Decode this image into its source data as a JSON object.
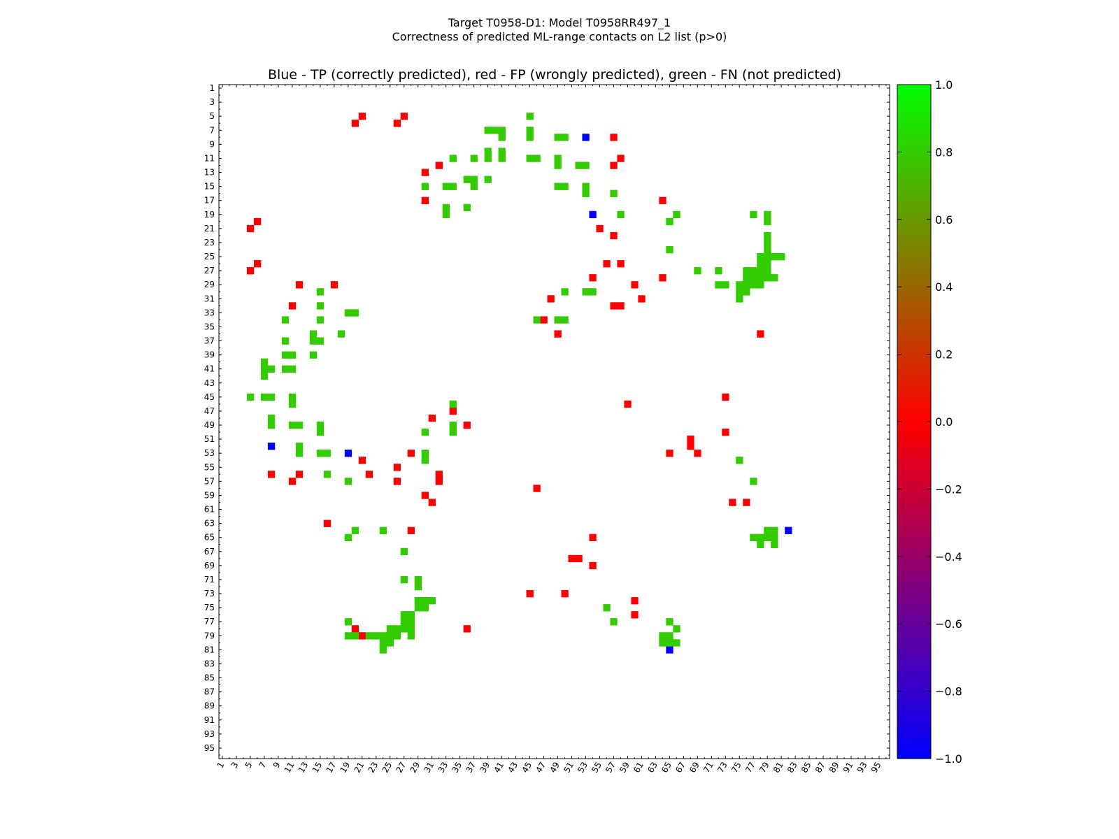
{
  "figure": {
    "suptitle_line1": "Target T0958-D1: Model T0958RR497_1",
    "suptitle_line2": "Correctness of predicted ML-range contacts on L2 list (p>0)"
  },
  "chart_data": {
    "type": "heatmap",
    "title": "Blue - TP (correctly predicted), red - FP (wrongly predicted), green - FN (not predicted)",
    "xlabel": "",
    "ylabel": "",
    "n": 96,
    "x_range": [
      1,
      96
    ],
    "y_range": [
      1,
      96
    ],
    "x_tick_labels": [
      "1",
      "3",
      "5",
      "7",
      "9",
      "11",
      "13",
      "15",
      "17",
      "19",
      "21",
      "23",
      "25",
      "27",
      "29",
      "31",
      "33",
      "35",
      "37",
      "39",
      "41",
      "43",
      "45",
      "47",
      "49",
      "51",
      "53",
      "55",
      "57",
      "59",
      "61",
      "63",
      "65",
      "67",
      "69",
      "71",
      "73",
      "75",
      "77",
      "79",
      "81",
      "83",
      "85",
      "87",
      "89",
      "91",
      "93",
      "95"
    ],
    "y_tick_labels": [
      "1",
      "3",
      "5",
      "7",
      "9",
      "11",
      "13",
      "15",
      "17",
      "19",
      "21",
      "23",
      "25",
      "27",
      "29",
      "31",
      "33",
      "35",
      "37",
      "39",
      "41",
      "43",
      "45",
      "47",
      "49",
      "51",
      "53",
      "55",
      "57",
      "59",
      "61",
      "63",
      "65",
      "67",
      "69",
      "71",
      "73",
      "75",
      "77",
      "79",
      "81",
      "83",
      "85",
      "87",
      "89",
      "91",
      "93",
      "95"
    ],
    "grid": false,
    "colorbar": {
      "vmin": -1.0,
      "vmax": 1.0,
      "tick_labels": [
        "1.0",
        "0.8",
        "0.6",
        "0.4",
        "0.2",
        "0.0",
        "−0.2",
        "−0.4",
        "−0.6",
        "−0.8",
        "−1.0"
      ],
      "colors": {
        "tp": "#0000ff",
        "fp": "#ff0000",
        "fn": "#33cc00",
        "top": "#00ff00",
        "mid": "#ff0000",
        "bottom": "#0000ff"
      }
    },
    "series": [
      {
        "name": "TP",
        "value": -1.0,
        "points": [
          [
            53,
            8
          ],
          [
            54,
            19
          ],
          [
            8,
            52
          ],
          [
            19,
            53
          ],
          [
            82,
            64
          ],
          [
            65,
            81
          ]
        ]
      },
      {
        "name": "FP",
        "value": 0.0,
        "points": [
          [
            21,
            5
          ],
          [
            27,
            5
          ],
          [
            20,
            6
          ],
          [
            26,
            6
          ],
          [
            57,
            8
          ],
          [
            58,
            11
          ],
          [
            57,
            12
          ],
          [
            30,
            13
          ],
          [
            32,
            12
          ],
          [
            30,
            17
          ],
          [
            64,
            17
          ],
          [
            6,
            20
          ],
          [
            5,
            21
          ],
          [
            55,
            21
          ],
          [
            57,
            22
          ],
          [
            6,
            26
          ],
          [
            5,
            27
          ],
          [
            56,
            26
          ],
          [
            58,
            26
          ],
          [
            54,
            28
          ],
          [
            64,
            28
          ],
          [
            12,
            29
          ],
          [
            17,
            29
          ],
          [
            60,
            29
          ],
          [
            48,
            31
          ],
          [
            61,
            31
          ],
          [
            11,
            32
          ],
          [
            57,
            32
          ],
          [
            58,
            32
          ],
          [
            47,
            34
          ],
          [
            49,
            36
          ],
          [
            78,
            36
          ],
          [
            73,
            45
          ],
          [
            59,
            46
          ],
          [
            34,
            47
          ],
          [
            31,
            48
          ],
          [
            36,
            49
          ],
          [
            73,
            50
          ],
          [
            68,
            51
          ],
          [
            68,
            52
          ],
          [
            65,
            53
          ],
          [
            69,
            53
          ],
          [
            28,
            53
          ],
          [
            21,
            54
          ],
          [
            26,
            55
          ],
          [
            8,
            56
          ],
          [
            12,
            56
          ],
          [
            22,
            56
          ],
          [
            32,
            56
          ],
          [
            11,
            57
          ],
          [
            26,
            57
          ],
          [
            32,
            57
          ],
          [
            46,
            58
          ],
          [
            30,
            59
          ],
          [
            31,
            60
          ],
          [
            74,
            60
          ],
          [
            76,
            60
          ],
          [
            16,
            63
          ],
          [
            28,
            64
          ],
          [
            54,
            65
          ],
          [
            51,
            68
          ],
          [
            52,
            68
          ],
          [
            54,
            69
          ],
          [
            45,
            73
          ],
          [
            50,
            73
          ],
          [
            60,
            74
          ],
          [
            60,
            76
          ],
          [
            20,
            78
          ],
          [
            36,
            78
          ],
          [
            21,
            79
          ]
        ]
      },
      {
        "name": "FN",
        "value": 0.8,
        "points": [
          [
            45,
            5
          ],
          [
            39,
            7
          ],
          [
            40,
            7
          ],
          [
            41,
            7
          ],
          [
            45,
            7
          ],
          [
            41,
            8
          ],
          [
            45,
            8
          ],
          [
            49,
            8
          ],
          [
            50,
            8
          ],
          [
            39,
            10
          ],
          [
            41,
            10
          ],
          [
            39,
            11
          ],
          [
            41,
            11
          ],
          [
            45,
            11
          ],
          [
            46,
            11
          ],
          [
            49,
            11
          ],
          [
            34,
            11
          ],
          [
            37,
            11
          ],
          [
            49,
            12
          ],
          [
            52,
            12
          ],
          [
            53,
            12
          ],
          [
            36,
            14
          ],
          [
            37,
            14
          ],
          [
            39,
            14
          ],
          [
            30,
            15
          ],
          [
            33,
            15
          ],
          [
            34,
            15
          ],
          [
            37,
            15
          ],
          [
            49,
            15
          ],
          [
            50,
            15
          ],
          [
            53,
            15
          ],
          [
            53,
            16
          ],
          [
            57,
            16
          ],
          [
            36,
            18
          ],
          [
            33,
            18
          ],
          [
            33,
            19
          ],
          [
            58,
            19
          ],
          [
            66,
            19
          ],
          [
            77,
            19
          ],
          [
            79,
            19
          ],
          [
            65,
            20
          ],
          [
            79,
            20
          ],
          [
            79,
            22
          ],
          [
            79,
            23
          ],
          [
            65,
            24
          ],
          [
            79,
            24
          ],
          [
            78,
            25
          ],
          [
            79,
            25
          ],
          [
            80,
            25
          ],
          [
            81,
            25
          ],
          [
            78,
            26
          ],
          [
            79,
            26
          ],
          [
            69,
            27
          ],
          [
            72,
            27
          ],
          [
            76,
            27
          ],
          [
            77,
            27
          ],
          [
            78,
            27
          ],
          [
            79,
            27
          ],
          [
            76,
            28
          ],
          [
            77,
            28
          ],
          [
            78,
            28
          ],
          [
            79,
            28
          ],
          [
            80,
            28
          ],
          [
            72,
            29
          ],
          [
            73,
            29
          ],
          [
            75,
            29
          ],
          [
            76,
            29
          ],
          [
            77,
            29
          ],
          [
            78,
            29
          ],
          [
            75,
            30
          ],
          [
            76,
            30
          ],
          [
            75,
            31
          ],
          [
            50,
            30
          ],
          [
            53,
            30
          ],
          [
            54,
            30
          ],
          [
            15,
            30
          ],
          [
            15,
            32
          ],
          [
            19,
            33
          ],
          [
            20,
            33
          ],
          [
            15,
            34
          ],
          [
            10,
            34
          ],
          [
            46,
            34
          ],
          [
            49,
            34
          ],
          [
            50,
            34
          ],
          [
            14,
            36
          ],
          [
            18,
            36
          ],
          [
            10,
            37
          ],
          [
            14,
            37
          ],
          [
            15,
            37
          ],
          [
            10,
            39
          ],
          [
            11,
            39
          ],
          [
            14,
            39
          ],
          [
            7,
            40
          ],
          [
            7,
            41
          ],
          [
            8,
            41
          ],
          [
            10,
            41
          ],
          [
            11,
            41
          ],
          [
            7,
            42
          ],
          [
            5,
            45
          ],
          [
            7,
            45
          ],
          [
            8,
            45
          ],
          [
            11,
            45
          ],
          [
            11,
            46
          ],
          [
            34,
            46
          ],
          [
            8,
            48
          ],
          [
            8,
            49
          ],
          [
            11,
            49
          ],
          [
            12,
            49
          ],
          [
            15,
            49
          ],
          [
            34,
            49
          ],
          [
            34,
            50
          ],
          [
            15,
            50
          ],
          [
            30,
            50
          ],
          [
            12,
            52
          ],
          [
            12,
            53
          ],
          [
            15,
            53
          ],
          [
            16,
            53
          ],
          [
            30,
            53
          ],
          [
            30,
            54
          ],
          [
            75,
            54
          ],
          [
            16,
            56
          ],
          [
            19,
            57
          ],
          [
            77,
            57
          ],
          [
            20,
            64
          ],
          [
            24,
            64
          ],
          [
            19,
            65
          ],
          [
            27,
            67
          ],
          [
            27,
            71
          ],
          [
            29,
            71
          ],
          [
            29,
            72
          ],
          [
            29,
            74
          ],
          [
            30,
            74
          ],
          [
            31,
            74
          ],
          [
            29,
            75
          ],
          [
            30,
            75
          ],
          [
            27,
            76
          ],
          [
            28,
            76
          ],
          [
            19,
            77
          ],
          [
            27,
            77
          ],
          [
            28,
            77
          ],
          [
            65,
            77
          ],
          [
            25,
            78
          ],
          [
            26,
            78
          ],
          [
            27,
            78
          ],
          [
            28,
            78
          ],
          [
            66,
            78
          ],
          [
            19,
            79
          ],
          [
            20,
            79
          ],
          [
            22,
            79
          ],
          [
            23,
            79
          ],
          [
            24,
            79
          ],
          [
            25,
            79
          ],
          [
            26,
            79
          ],
          [
            28,
            79
          ],
          [
            64,
            79
          ],
          [
            65,
            79
          ],
          [
            24,
            80
          ],
          [
            25,
            80
          ],
          [
            64,
            80
          ],
          [
            65,
            80
          ],
          [
            66,
            80
          ],
          [
            24,
            81
          ],
          [
            77,
            65
          ],
          [
            78,
            65
          ],
          [
            79,
            65
          ],
          [
            80,
            65
          ],
          [
            79,
            64
          ],
          [
            80,
            64
          ],
          [
            78,
            66
          ],
          [
            80,
            66
          ],
          [
            56,
            75
          ],
          [
            57,
            77
          ]
        ]
      }
    ]
  }
}
